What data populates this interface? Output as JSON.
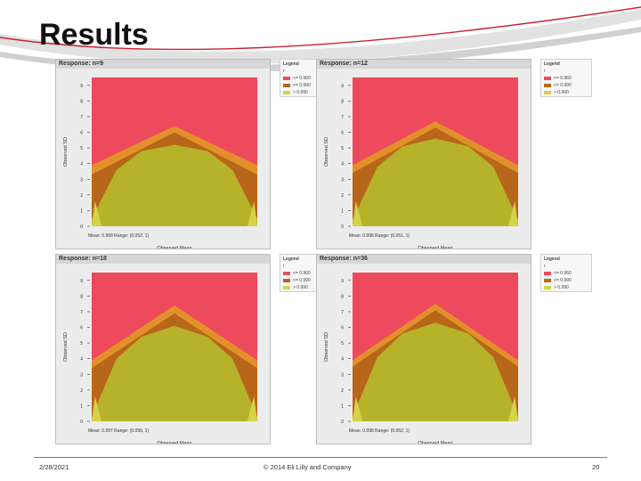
{
  "slide": {
    "title": "Results",
    "date": "2/28/2021",
    "copyright": "© 2014 Eli Lilly and Company",
    "page_number": "20"
  },
  "colors": {
    "above": "#ee4a5d",
    "mid_dark": "#b8661a",
    "mid_light": "#e2902a",
    "below": "#b6b22a",
    "below_light": "#d6d248"
  },
  "chart_data": [
    {
      "type": "area",
      "title": "Response: n=9",
      "xlabel": "Observed Mean",
      "ylabel": "Observed SD",
      "yticks": [
        "0",
        "1",
        "2",
        "3",
        "4",
        "5",
        "6",
        "7",
        "8",
        "9"
      ],
      "ylim": [
        0,
        9.5
      ],
      "xlim": [
        0,
        1
      ],
      "annotation": "Mean: 0.999 Range: (0.052, 1)",
      "legend": {
        "title": "Legend",
        "subtitle": "r",
        "entries": [
          "<= 0.960",
          "<= 0.990",
          "> 0.990"
        ]
      },
      "series": [
        {
          "name": "<= 0.960",
          "x": [
            0,
            0.5,
            1
          ],
          "y": [
            3.9,
            6.4,
            3.9
          ]
        },
        {
          "name": "<= 0.990",
          "x": [
            0,
            0.5,
            1
          ],
          "y": [
            3.3,
            6.0,
            3.3
          ]
        },
        {
          "name": "> 0.990",
          "x": [
            0,
            0.15,
            0.3,
            0.5,
            0.7,
            0.85,
            1
          ],
          "y": [
            0.5,
            3.6,
            4.8,
            5.2,
            4.8,
            3.6,
            0.5
          ]
        }
      ]
    },
    {
      "type": "area",
      "title": "Response: n=12",
      "xlabel": "Observed Mean",
      "ylabel": "Observed SD",
      "yticks": [
        "0",
        "1",
        "2",
        "3",
        "4",
        "5",
        "6",
        "7",
        "8",
        "9"
      ],
      "ylim": [
        0,
        9.5
      ],
      "xlim": [
        0,
        1
      ],
      "annotation": "Mean: 0.998 Range: (0.051, 1)",
      "legend": {
        "title": "Legend",
        "subtitle": "r",
        "entries": [
          "<= 0.960",
          "<= 0.990",
          "> 0.990"
        ]
      },
      "series": [
        {
          "name": "<= 0.960",
          "x": [
            0,
            0.5,
            1
          ],
          "y": [
            3.9,
            6.7,
            3.9
          ]
        },
        {
          "name": "<= 0.990",
          "x": [
            0,
            0.5,
            1
          ],
          "y": [
            3.4,
            6.3,
            3.4
          ]
        },
        {
          "name": "> 0.990",
          "x": [
            0,
            0.15,
            0.3,
            0.5,
            0.7,
            0.85,
            1
          ],
          "y": [
            0.4,
            3.8,
            5.1,
            5.6,
            5.1,
            3.8,
            0.4
          ]
        }
      ]
    },
    {
      "type": "area",
      "title": "Response: n=18",
      "xlabel": "Observed Mean",
      "ylabel": "Observed SD",
      "yticks": [
        "0",
        "1",
        "2",
        "3",
        "4",
        "5",
        "6",
        "7",
        "8",
        "9"
      ],
      "ylim": [
        0,
        9.5
      ],
      "xlim": [
        0,
        1
      ],
      "annotation": "Mean: 0.997 Range: (0.056, 1)",
      "legend": {
        "title": "Legend",
        "subtitle": "r",
        "entries": [
          "<= 0.960",
          "<= 0.990",
          "> 0.990"
        ]
      },
      "series": [
        {
          "name": "<= 0.960",
          "x": [
            0,
            0.5,
            1
          ],
          "y": [
            3.9,
            7.4,
            3.9
          ]
        },
        {
          "name": "<= 0.990",
          "x": [
            0,
            0.5,
            1
          ],
          "y": [
            3.4,
            6.9,
            3.4
          ]
        },
        {
          "name": "> 0.990",
          "x": [
            0,
            0.15,
            0.3,
            0.5,
            0.7,
            0.85,
            1
          ],
          "y": [
            0.3,
            4.0,
            5.4,
            6.1,
            5.4,
            4.0,
            0.3
          ]
        }
      ]
    },
    {
      "type": "area",
      "title": "Response: n=36",
      "xlabel": "Observed Mean",
      "ylabel": "Observed SD",
      "yticks": [
        "0",
        "1",
        "2",
        "3",
        "4",
        "5",
        "6",
        "7",
        "8",
        "9"
      ],
      "ylim": [
        0,
        9.5
      ],
      "xlim": [
        0,
        1
      ],
      "annotation": "Mean: 0.998 Range: (0.052, 1)",
      "legend": {
        "title": "Legend",
        "subtitle": "r",
        "entries": [
          "<= 0.960",
          "<= 0.990",
          "> 0.990"
        ]
      },
      "series": [
        {
          "name": "<= 0.960",
          "x": [
            0,
            0.5,
            1
          ],
          "y": [
            3.9,
            7.5,
            3.9
          ]
        },
        {
          "name": "<= 0.990",
          "x": [
            0,
            0.5,
            1
          ],
          "y": [
            3.5,
            7.1,
            3.5
          ]
        },
        {
          "name": "> 0.990",
          "x": [
            0,
            0.15,
            0.3,
            0.5,
            0.7,
            0.85,
            1
          ],
          "y": [
            0.3,
            4.1,
            5.6,
            6.3,
            5.6,
            4.1,
            0.3
          ]
        }
      ]
    }
  ]
}
